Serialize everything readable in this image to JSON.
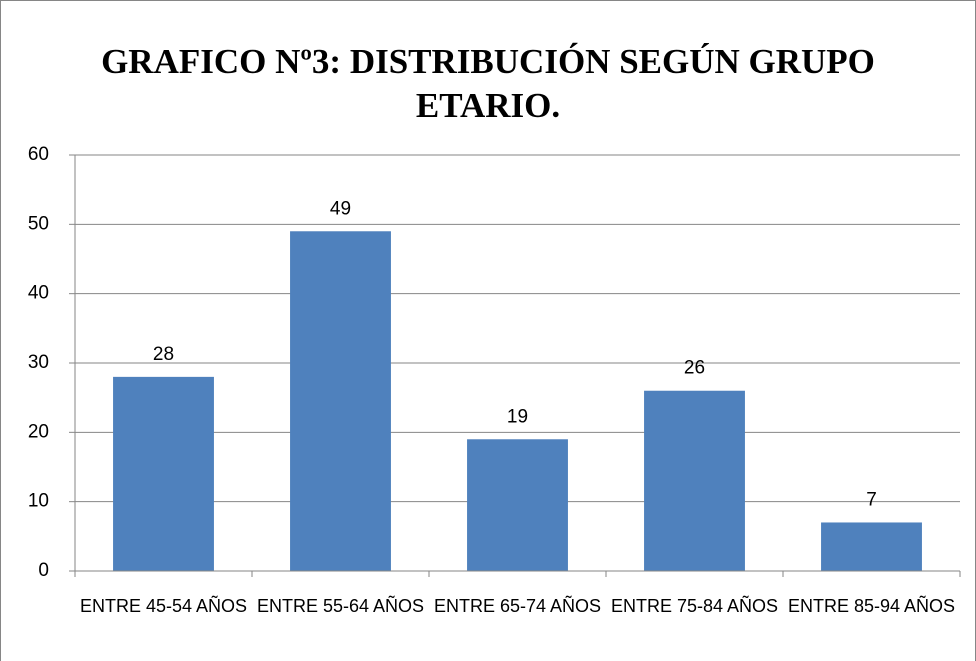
{
  "chart_data": {
    "type": "bar",
    "title": "GRAFICO Nº3: DISTRIBUCIÓN SEGÚN GRUPO ETARIO.",
    "categories": [
      "ENTRE 45-54 AÑOS",
      "ENTRE 55-64 AÑOS",
      "ENTRE 65-74 AÑOS",
      "ENTRE 75-84 AÑOS",
      "ENTRE 85-94 AÑOS"
    ],
    "values": [
      28,
      49,
      19,
      26,
      7
    ],
    "color": "#4f81bd",
    "ylim": [
      0,
      60
    ],
    "yticks": [
      0,
      10,
      20,
      30,
      40,
      50,
      60
    ],
    "grid": true
  }
}
